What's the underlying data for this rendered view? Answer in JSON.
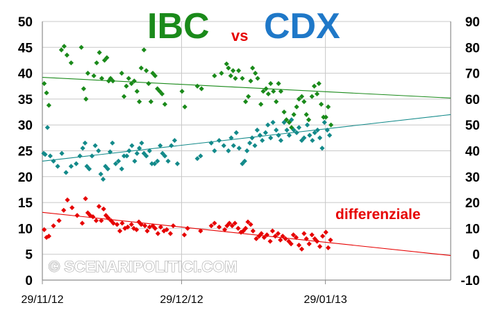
{
  "chart_data": {
    "type": "scatter",
    "title": {
      "part1": "IBC",
      "part2": "vs",
      "part3": "CDX"
    },
    "title_colors": {
      "part1": "#1a8a1a",
      "part2": "#e60000",
      "part3": "#1f78c8"
    },
    "watermark": "© SCENARIPOLITICI.COM",
    "annotation": "differenziale",
    "y_left": {
      "ticks": [
        "0",
        "5",
        "10",
        "15",
        "20",
        "25",
        "30",
        "35",
        "40",
        "45",
        "50"
      ],
      "range": [
        0,
        50
      ]
    },
    "y_right": {
      "ticks": [
        "-10",
        "0",
        "10",
        "20",
        "30",
        "40",
        "50",
        "60",
        "70",
        "80",
        "90"
      ],
      "range": [
        -10,
        90
      ]
    },
    "x": {
      "tick_labels": [
        "29/11/12",
        "29/12/12",
        "29/01/13"
      ],
      "tick_days": [
        0,
        30,
        61
      ],
      "range_days": [
        0,
        88
      ]
    },
    "grid": "horizontal + vertical, light gray",
    "series": [
      {
        "name": "IBC",
        "color": "#1a8a1a",
        "axis": "left",
        "trend": {
          "start": [
            0,
            39.2
          ],
          "end": [
            88,
            35.2
          ]
        },
        "points": [
          [
            0.4,
            38
          ],
          [
            0.9,
            36.2
          ],
          [
            1.4,
            33.8
          ],
          [
            4.1,
            44.5
          ],
          [
            4.7,
            45.2
          ],
          [
            5.3,
            43.5
          ],
          [
            6.2,
            42
          ],
          [
            8.4,
            45
          ],
          [
            8.9,
            37
          ],
          [
            9.4,
            35
          ],
          [
            9.8,
            40
          ],
          [
            11.1,
            39.5
          ],
          [
            11.7,
            42
          ],
          [
            12.3,
            44
          ],
          [
            12.8,
            39
          ],
          [
            13.4,
            42.5
          ],
          [
            13.9,
            43
          ],
          [
            14.3,
            38.5
          ],
          [
            14.7,
            39
          ],
          [
            15.2,
            38.5
          ],
          [
            17.1,
            40
          ],
          [
            17.6,
            35.5
          ],
          [
            18.1,
            37.5
          ],
          [
            18.6,
            39
          ],
          [
            19.2,
            38
          ],
          [
            19.8,
            38.5
          ],
          [
            20.4,
            36.5
          ],
          [
            20.9,
            34.5
          ],
          [
            21.3,
            41
          ],
          [
            21.9,
            44.5
          ],
          [
            22.4,
            40.5
          ],
          [
            22.9,
            38
          ],
          [
            23.4,
            34.5
          ],
          [
            23.8,
            40
          ],
          [
            24.3,
            39.5
          ],
          [
            24.8,
            37
          ],
          [
            25.3,
            36.5
          ],
          [
            25.8,
            36
          ],
          [
            26.4,
            34
          ],
          [
            30.1,
            36.5
          ],
          [
            30.7,
            33.5
          ],
          [
            33.4,
            37.5
          ],
          [
            34.3,
            37
          ],
          [
            37.1,
            39.5
          ],
          [
            38.6,
            40
          ],
          [
            39.7,
            41.8
          ],
          [
            40.1,
            41
          ],
          [
            40.6,
            39.5
          ],
          [
            41.1,
            40.5
          ],
          [
            41.6,
            39
          ],
          [
            42.3,
            40.5
          ],
          [
            43.1,
            39
          ],
          [
            43.8,
            34.5
          ],
          [
            44.4,
            35.5
          ],
          [
            44.9,
            38.5
          ],
          [
            45.3,
            41
          ],
          [
            45.9,
            40
          ],
          [
            46.4,
            39
          ],
          [
            47.1,
            34
          ],
          [
            47.6,
            36.5
          ],
          [
            48.2,
            37
          ],
          [
            48.7,
            36
          ],
          [
            49.2,
            38
          ],
          [
            49.8,
            36.5
          ],
          [
            50.4,
            34.5
          ],
          [
            50.9,
            38
          ],
          [
            51.4,
            36.5
          ],
          [
            52.1,
            32.5
          ],
          [
            52.6,
            31
          ],
          [
            53.2,
            30.5
          ],
          [
            53.7,
            29.5
          ],
          [
            54.2,
            32
          ],
          [
            54.8,
            33.5
          ],
          [
            55.3,
            35
          ],
          [
            55.9,
            35.5
          ],
          [
            56.4,
            34.5
          ],
          [
            56.9,
            32
          ],
          [
            57.4,
            31
          ],
          [
            58.1,
            35.5
          ],
          [
            58.6,
            37.5
          ],
          [
            59.2,
            36
          ],
          [
            59.6,
            38
          ],
          [
            60.1,
            34
          ],
          [
            60.6,
            31.5
          ],
          [
            61.1,
            31.5
          ],
          [
            61.6,
            33.5
          ],
          [
            62.2,
            30
          ]
        ]
      },
      {
        "name": "CDX",
        "color": "#138a8a",
        "axis": "left",
        "trend": {
          "start": [
            0,
            23.0
          ],
          "end": [
            88,
            32.0
          ]
        },
        "points": [
          [
            0.3,
            24.5
          ],
          [
            0.6,
            24.3
          ],
          [
            1.1,
            29.5
          ],
          [
            1.7,
            24
          ],
          [
            2.4,
            23
          ],
          [
            3.3,
            22
          ],
          [
            4.2,
            24.5
          ],
          [
            5.1,
            20.8
          ],
          [
            6.2,
            22
          ],
          [
            7.3,
            22.5
          ],
          [
            8.1,
            24
          ],
          [
            8.7,
            25.5
          ],
          [
            9.2,
            26.5
          ],
          [
            9.6,
            22
          ],
          [
            10.1,
            21.5
          ],
          [
            10.7,
            24
          ],
          [
            11.4,
            26
          ],
          [
            12.1,
            25
          ],
          [
            12.6,
            20.5
          ],
          [
            13.1,
            19.5
          ],
          [
            13.6,
            22
          ],
          [
            14.1,
            21.5
          ],
          [
            14.6,
            24.8
          ],
          [
            15.1,
            26.5
          ],
          [
            15.8,
            22.5
          ],
          [
            16.4,
            23
          ],
          [
            17.1,
            21.5
          ],
          [
            17.6,
            24
          ],
          [
            18.2,
            24
          ],
          [
            18.7,
            25
          ],
          [
            19.3,
            26
          ],
          [
            19.9,
            23
          ],
          [
            20.4,
            24.5
          ],
          [
            20.9,
            25.5
          ],
          [
            21.4,
            26.5
          ],
          [
            21.9,
            24.5
          ],
          [
            22.4,
            24
          ],
          [
            23.1,
            25
          ],
          [
            23.6,
            22.5
          ],
          [
            24.2,
            22.5
          ],
          [
            24.8,
            23
          ],
          [
            25.4,
            26
          ],
          [
            25.9,
            24.5
          ],
          [
            26.4,
            24
          ],
          [
            27.1,
            23
          ],
          [
            27.8,
            26
          ],
          [
            28.5,
            27
          ],
          [
            29.1,
            22.5
          ],
          [
            33.4,
            23.5
          ],
          [
            34.1,
            24
          ],
          [
            36.4,
            26.5
          ],
          [
            37.1,
            25
          ],
          [
            38.1,
            27
          ],
          [
            39.1,
            26
          ],
          [
            40.1,
            25
          ],
          [
            40.7,
            27.5
          ],
          [
            41.2,
            26
          ],
          [
            41.8,
            28.5
          ],
          [
            42.4,
            25.5
          ],
          [
            43.1,
            22.5
          ],
          [
            43.6,
            23
          ],
          [
            44.1,
            25
          ],
          [
            44.7,
            26.5
          ],
          [
            45.2,
            27.5
          ],
          [
            45.8,
            26
          ],
          [
            46.3,
            29
          ],
          [
            46.9,
            28
          ],
          [
            47.4,
            27
          ],
          [
            48.1,
            28.5
          ],
          [
            48.6,
            30
          ],
          [
            49.2,
            27.5
          ],
          [
            49.7,
            30.5
          ],
          [
            50.4,
            29
          ],
          [
            50.9,
            28
          ],
          [
            51.4,
            27
          ],
          [
            52.1,
            30.5
          ],
          [
            52.7,
            29
          ],
          [
            53.2,
            28
          ],
          [
            53.7,
            31
          ],
          [
            54.2,
            29
          ],
          [
            54.8,
            28.5
          ],
          [
            55.3,
            29.5
          ],
          [
            55.9,
            27
          ],
          [
            56.4,
            27.5
          ],
          [
            57.1,
            30
          ],
          [
            57.6,
            28
          ],
          [
            58.2,
            27
          ],
          [
            58.7,
            28.5
          ],
          [
            59.3,
            29
          ],
          [
            59.8,
            27.5
          ],
          [
            60.3,
            25.5
          ],
          [
            60.8,
            30.5
          ],
          [
            61.4,
            29
          ],
          [
            61.9,
            28
          ]
        ]
      },
      {
        "name": "differenziale",
        "color": "#e60000",
        "axis": "right",
        "trend": {
          "start": [
            0,
            16.2
          ],
          "end": [
            88,
            -0.5
          ]
        },
        "points": [
          [
            0.4,
            9.5
          ],
          [
            0.9,
            6.5
          ],
          [
            1.4,
            7
          ],
          [
            2.4,
            11
          ],
          [
            3.6,
            13
          ],
          [
            4.6,
            17
          ],
          [
            5.4,
            21
          ],
          [
            6.4,
            18
          ],
          [
            7.5,
            15
          ],
          [
            8.6,
            12
          ],
          [
            9.3,
            21.5
          ],
          [
            9.8,
            16
          ],
          [
            10.3,
            15
          ],
          [
            10.9,
            14.5
          ],
          [
            11.6,
            13
          ],
          [
            12.2,
            18.5
          ],
          [
            12.7,
            13
          ],
          [
            13.2,
            17.5
          ],
          [
            13.7,
            15
          ],
          [
            14.2,
            14
          ],
          [
            14.8,
            13
          ],
          [
            15.3,
            12
          ],
          [
            16.1,
            11.5
          ],
          [
            16.7,
            9
          ],
          [
            17.2,
            12
          ],
          [
            17.8,
            10
          ],
          [
            18.4,
            10.5
          ],
          [
            19.2,
            11.5
          ],
          [
            19.7,
            10
          ],
          [
            20.3,
            9.5
          ],
          [
            20.8,
            12.5
          ],
          [
            21.3,
            11.5
          ],
          [
            22.1,
            11
          ],
          [
            22.6,
            9
          ],
          [
            23.1,
            10.5
          ],
          [
            23.8,
            11
          ],
          [
            24.3,
            10
          ],
          [
            24.9,
            8
          ],
          [
            25.5,
            10.5
          ],
          [
            26.2,
            9
          ],
          [
            26.8,
            9.5
          ],
          [
            27.6,
            8
          ],
          [
            28.2,
            11
          ],
          [
            30.6,
            7.5
          ],
          [
            31.3,
            10
          ],
          [
            34.1,
            9
          ],
          [
            36.4,
            11
          ],
          [
            37.1,
            12
          ],
          [
            38.1,
            10.5
          ],
          [
            39.3,
            9.5
          ],
          [
            39.8,
            11
          ],
          [
            40.3,
            12
          ],
          [
            40.9,
            11
          ],
          [
            41.5,
            12
          ],
          [
            42.2,
            10
          ],
          [
            42.8,
            8.5
          ],
          [
            43.3,
            9
          ],
          [
            43.8,
            10
          ],
          [
            44.3,
            12.5
          ],
          [
            44.9,
            11.5
          ],
          [
            45.4,
            9
          ],
          [
            46.1,
            6
          ],
          [
            46.7,
            7
          ],
          [
            47.2,
            8
          ],
          [
            47.8,
            6.5
          ],
          [
            48.4,
            7.5
          ],
          [
            49.1,
            5
          ],
          [
            49.6,
            9
          ],
          [
            50.2,
            7
          ],
          [
            50.8,
            8
          ],
          [
            51.3,
            5.5
          ],
          [
            51.8,
            7
          ],
          [
            52.4,
            6
          ],
          [
            53.1,
            5
          ],
          [
            53.6,
            4
          ],
          [
            54.1,
            7.5
          ],
          [
            54.7,
            6.5
          ],
          [
            55.3,
            3.5
          ],
          [
            55.9,
            2
          ],
          [
            56.4,
            8
          ],
          [
            56.9,
            6
          ],
          [
            57.5,
            4
          ],
          [
            58.1,
            7.5
          ],
          [
            58.7,
            6
          ],
          [
            59.2,
            5
          ],
          [
            59.8,
            3
          ],
          [
            60.4,
            7
          ],
          [
            61.1,
            8.5
          ],
          [
            61.6,
            2.5
          ],
          [
            62.1,
            5.5
          ]
        ]
      }
    ]
  }
}
